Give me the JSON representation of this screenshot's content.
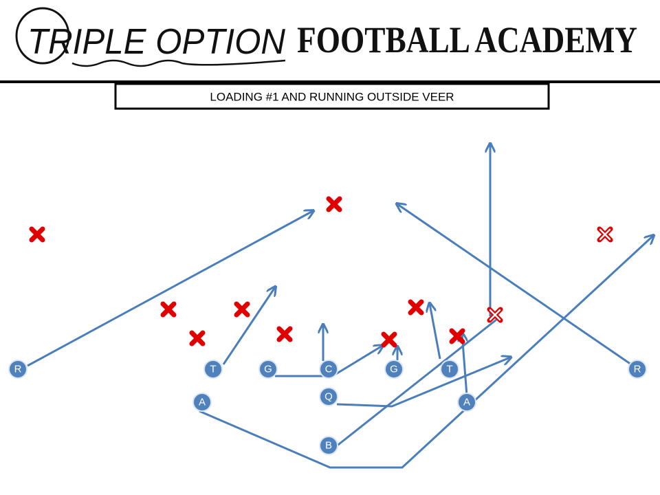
{
  "header": {
    "logo_script": "TRIPLE OPTION",
    "logo_text": "FOOTBALL ACADEMY"
  },
  "title": "LOADING #1 AND RUNNING OUTSIDE VEER",
  "players": [
    {
      "label": "R"
    },
    {
      "label": "T"
    },
    {
      "label": "G"
    },
    {
      "label": "C"
    },
    {
      "label": "G"
    },
    {
      "label": "T"
    },
    {
      "label": "R"
    },
    {
      "label": "Q"
    },
    {
      "label": "A"
    },
    {
      "label": "A"
    },
    {
      "label": "B"
    }
  ]
}
